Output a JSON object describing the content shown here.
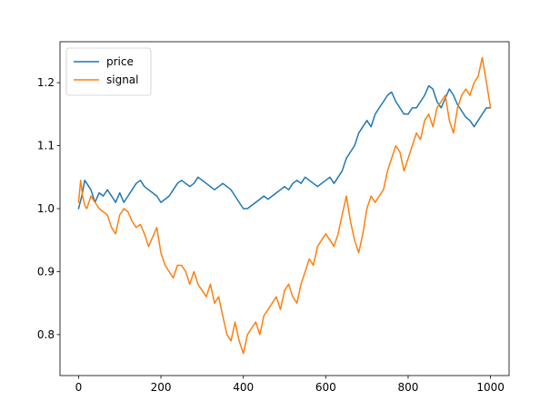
{
  "chart_data": {
    "type": "line",
    "title": "",
    "xlabel": "",
    "ylabel": "",
    "xlim": [
      -45,
      1045
    ],
    "ylim": [
      0.735,
      1.265
    ],
    "xticks": [
      {
        "value": 0,
        "label": "0"
      },
      {
        "value": 200,
        "label": "200"
      },
      {
        "value": 400,
        "label": "400"
      },
      {
        "value": 600,
        "label": "600"
      },
      {
        "value": 800,
        "label": "800"
      },
      {
        "value": 1000,
        "label": "1000"
      }
    ],
    "yticks": [
      {
        "value": 0.8,
        "label": "0.8"
      },
      {
        "value": 0.9,
        "label": "0.9"
      },
      {
        "value": 1.0,
        "label": "1.0"
      },
      {
        "value": 1.1,
        "label": "1.1"
      },
      {
        "value": 1.2,
        "label": "1.2"
      }
    ],
    "grid": false,
    "legend_position": "top-left",
    "series": [
      {
        "name": "price",
        "color": "#1f77b4",
        "x": [
          0,
          8,
          15,
          20,
          30,
          40,
          50,
          60,
          70,
          80,
          90,
          100,
          110,
          120,
          130,
          140,
          150,
          160,
          170,
          180,
          190,
          200,
          210,
          220,
          230,
          240,
          250,
          260,
          270,
          280,
          290,
          300,
          310,
          320,
          330,
          340,
          350,
          360,
          370,
          380,
          390,
          400,
          410,
          420,
          430,
          440,
          450,
          460,
          470,
          480,
          490,
          500,
          510,
          520,
          530,
          540,
          550,
          560,
          570,
          580,
          590,
          600,
          610,
          620,
          630,
          640,
          650,
          660,
          670,
          680,
          690,
          700,
          710,
          720,
          730,
          740,
          750,
          760,
          770,
          780,
          790,
          800,
          810,
          820,
          830,
          840,
          850,
          860,
          870,
          880,
          890,
          900,
          910,
          920,
          930,
          940,
          950,
          960,
          970,
          980,
          990,
          1000
        ],
        "y": [
          1.0,
          1.02,
          1.045,
          1.04,
          1.03,
          1.01,
          1.025,
          1.02,
          1.03,
          1.02,
          1.01,
          1.025,
          1.01,
          1.02,
          1.03,
          1.04,
          1.045,
          1.035,
          1.03,
          1.025,
          1.02,
          1.01,
          1.015,
          1.02,
          1.03,
          1.04,
          1.045,
          1.04,
          1.035,
          1.04,
          1.05,
          1.045,
          1.04,
          1.035,
          1.03,
          1.035,
          1.04,
          1.035,
          1.03,
          1.02,
          1.01,
          1.0,
          1.0,
          1.005,
          1.01,
          1.015,
          1.02,
          1.015,
          1.02,
          1.025,
          1.03,
          1.035,
          1.03,
          1.04,
          1.045,
          1.04,
          1.05,
          1.045,
          1.04,
          1.035,
          1.04,
          1.045,
          1.05,
          1.04,
          1.05,
          1.06,
          1.08,
          1.09,
          1.1,
          1.12,
          1.13,
          1.14,
          1.13,
          1.15,
          1.16,
          1.17,
          1.18,
          1.185,
          1.17,
          1.16,
          1.15,
          1.15,
          1.16,
          1.16,
          1.17,
          1.18,
          1.195,
          1.19,
          1.17,
          1.16,
          1.175,
          1.19,
          1.18,
          1.165,
          1.155,
          1.145,
          1.14,
          1.13,
          1.14,
          1.15,
          1.16,
          1.16
        ]
      },
      {
        "name": "signal",
        "color": "#ff7f0e",
        "x": [
          0,
          5,
          10,
          15,
          20,
          30,
          40,
          50,
          60,
          70,
          80,
          90,
          100,
          110,
          120,
          130,
          140,
          150,
          160,
          170,
          180,
          190,
          200,
          210,
          220,
          230,
          240,
          250,
          260,
          270,
          280,
          290,
          300,
          310,
          320,
          330,
          340,
          350,
          360,
          370,
          380,
          390,
          400,
          410,
          420,
          430,
          440,
          450,
          460,
          470,
          480,
          490,
          500,
          510,
          520,
          530,
          540,
          550,
          560,
          570,
          580,
          590,
          600,
          610,
          620,
          630,
          640,
          650,
          660,
          670,
          680,
          690,
          700,
          710,
          720,
          730,
          740,
          750,
          760,
          770,
          780,
          790,
          800,
          810,
          820,
          830,
          840,
          850,
          860,
          870,
          880,
          890,
          900,
          910,
          920,
          930,
          940,
          950,
          960,
          970,
          980,
          990,
          1000
        ],
        "y": [
          1.01,
          1.045,
          1.02,
          1.005,
          1.0,
          1.02,
          1.01,
          1.0,
          0.995,
          0.99,
          0.97,
          0.96,
          0.99,
          1.0,
          0.995,
          0.98,
          0.97,
          0.975,
          0.96,
          0.94,
          0.955,
          0.97,
          0.93,
          0.91,
          0.9,
          0.89,
          0.91,
          0.91,
          0.9,
          0.88,
          0.9,
          0.88,
          0.87,
          0.86,
          0.88,
          0.85,
          0.86,
          0.83,
          0.8,
          0.79,
          0.82,
          0.79,
          0.77,
          0.8,
          0.81,
          0.82,
          0.8,
          0.83,
          0.84,
          0.85,
          0.86,
          0.84,
          0.87,
          0.88,
          0.86,
          0.85,
          0.88,
          0.9,
          0.92,
          0.91,
          0.94,
          0.95,
          0.96,
          0.95,
          0.94,
          0.96,
          0.99,
          1.02,
          0.98,
          0.95,
          0.93,
          0.96,
          1.0,
          1.02,
          1.01,
          1.02,
          1.03,
          1.06,
          1.08,
          1.1,
          1.09,
          1.06,
          1.08,
          1.1,
          1.12,
          1.11,
          1.14,
          1.15,
          1.13,
          1.16,
          1.17,
          1.18,
          1.14,
          1.12,
          1.16,
          1.18,
          1.19,
          1.18,
          1.2,
          1.21,
          1.24,
          1.2,
          1.16
        ]
      }
    ]
  }
}
